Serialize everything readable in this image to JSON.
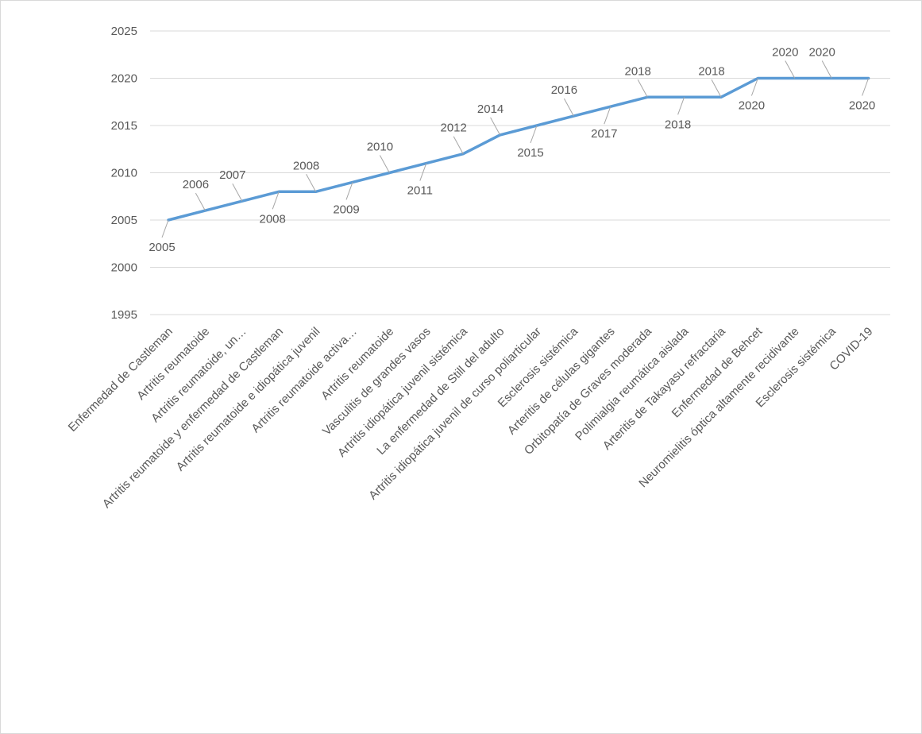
{
  "chart_data": {
    "type": "line",
    "title": "",
    "xlabel": "",
    "ylabel": "",
    "ylim": [
      1995,
      2025
    ],
    "yticks": [
      1995,
      2000,
      2005,
      2010,
      2015,
      2020,
      2025
    ],
    "grid": true,
    "legend": "none",
    "line_color": "#5b9bd5",
    "categories": [
      "Enfermedad de Castleman",
      "Artritis reumatoide",
      "Artritis reumatoide, un…",
      "Artritis reumatoide y enfermedad de Castleman",
      "Artritis reumatoide e idiopática juvenil",
      "Artritis reumatoide activa…",
      "Artritis reumatoide",
      "Vasculitis de grandes vasos",
      "Artritis idiopática juvenil sistémica",
      "La enfermedad de Still del adulto",
      "Artritis idiopática juvenil de curso poliarticular",
      "Esclerosis sistémica",
      "Arteritis de células gigantes",
      "Orbitopatía de Graves moderada",
      "Polimialgia reumática aislada",
      "Arteritis de Takayasu refractaria",
      "Enfermedad de Behcet",
      "Neuromielitis óptica altamente recidivante",
      "Esclerosis sistémica",
      "COVID-19"
    ],
    "values": [
      2005,
      2006,
      2007,
      2008,
      2008,
      2009,
      2010,
      2011,
      2012,
      2014,
      2015,
      2016,
      2017,
      2018,
      2018,
      2018,
      2020,
      2020,
      2020,
      2020
    ],
    "data_labels": [
      "2005",
      "2006",
      "2007",
      "2008",
      "2008",
      "2009",
      "2010",
      "2011",
      "2012",
      "2014",
      "2015",
      "2016",
      "2017",
      "2018",
      "2018",
      "2018",
      "2020",
      "2020",
      "2020",
      "2020"
    ]
  }
}
